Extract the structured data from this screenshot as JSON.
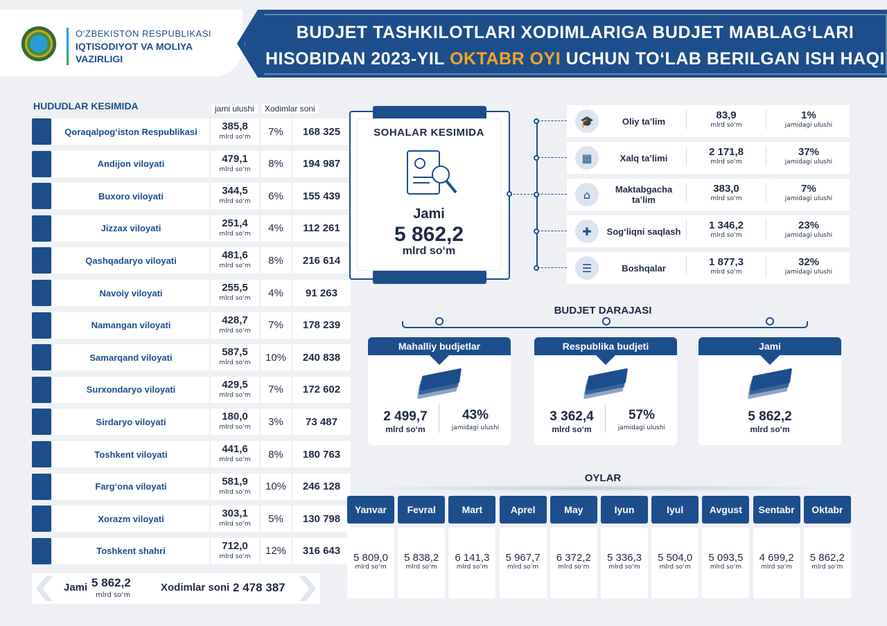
{
  "header": {
    "ministry_line1": "O‘ZBEKISTON RESPUBLIKASI",
    "ministry_line2": "IQTISODIYOT VA MOLIYA",
    "ministry_line3": "VAZIRLIGI",
    "title_line1": "BUDJET TASHKILOTLARI XODIMLARIGA BUDJET MABLAG‘LARI",
    "title_line2_a": "HISOBIDAN 2023-YIL",
    "title_line2_hl": "OKTABR OYI",
    "title_line2_b": "UCHUN TO‘LAB BERILGAN ISH HAQI",
    "accent_color": "#f5a623",
    "primary_color": "#1c4e8c"
  },
  "regions": {
    "heading": "HUDUDLAR KESIMIDA",
    "col_share": "jami ulushi",
    "col_staff": "Xodimlar soni",
    "unit": "mlrd so‘m",
    "rows": [
      {
        "name": "Qoraqalpog‘iston Respublikasi",
        "value": "385,8",
        "share": "7%",
        "staff": "168 325"
      },
      {
        "name": "Andijon viloyati",
        "value": "479,1",
        "share": "8%",
        "staff": "194 987"
      },
      {
        "name": "Buxoro viloyati",
        "value": "344,5",
        "share": "6%",
        "staff": "155 439"
      },
      {
        "name": "Jizzax viloyati",
        "value": "251,4",
        "share": "4%",
        "staff": "112 261"
      },
      {
        "name": "Qashqadaryo viloyati",
        "value": "481,6",
        "share": "8%",
        "staff": "216 614"
      },
      {
        "name": "Navoiy viloyati",
        "value": "255,5",
        "share": "4%",
        "staff": "91 263"
      },
      {
        "name": "Namangan viloyati",
        "value": "428,7",
        "share": "7%",
        "staff": "178 239"
      },
      {
        "name": "Samarqand viloyati",
        "value": "587,5",
        "share": "10%",
        "staff": "240 838"
      },
      {
        "name": "Surxondaryo viloyati",
        "value": "429,5",
        "share": "7%",
        "staff": "172 602"
      },
      {
        "name": "Sirdaryo viloyati",
        "value": "180,0",
        "share": "3%",
        "staff": "73 487"
      },
      {
        "name": "Toshkent viloyati",
        "value": "441,6",
        "share": "8%",
        "staff": "180 763"
      },
      {
        "name": "Farg‘ona viloyati",
        "value": "581,9",
        "share": "10%",
        "staff": "246 128"
      },
      {
        "name": "Xorazm viloyati",
        "value": "303,1",
        "share": "5%",
        "staff": "130 798"
      },
      {
        "name": "Toshkent shahri",
        "value": "712,0",
        "share": "12%",
        "staff": "316 643"
      }
    ],
    "total_label": "Jami",
    "total_value": "5 862,2",
    "total_unit": "mlrd so‘m",
    "staff_label": "Xodimlar soni",
    "staff_total": "2 478 387"
  },
  "sectors": {
    "heading": "SOHALAR KESIMIDA",
    "jami": "Jami",
    "total": "5 862,2",
    "unit": "mlrd so‘m",
    "share_unit": "jamidagi ulushi",
    "rows": [
      {
        "name": "Oliy ta’lim",
        "value": "83,9",
        "share": "1%",
        "icon": "graduate-icon"
      },
      {
        "name": "Xalq ta’limi",
        "value": "2 171,8",
        "share": "37%",
        "icon": "classroom-icon"
      },
      {
        "name": "Maktabgacha ta’lim",
        "value": "383,0",
        "share": "7%",
        "icon": "kindergarten-icon"
      },
      {
        "name": "Sog‘liqni saqlash",
        "value": "1 346,2",
        "share": "23%",
        "icon": "doctor-icon"
      },
      {
        "name": "Boshqalar",
        "value": "1 877,3",
        "share": "32%",
        "icon": "checklist-icon"
      }
    ]
  },
  "budget_level": {
    "heading": "BUDJET DARAJASI",
    "unit": "mlrd so‘m",
    "share_unit": "jamidagi ulushi",
    "cards": [
      {
        "name": "Mahalliy budjetlar",
        "value": "2 499,7",
        "share": "43%"
      },
      {
        "name": "Respublika budjeti",
        "value": "3 362,4",
        "share": "57%"
      },
      {
        "name": "Jami",
        "value": "5 862,2"
      }
    ]
  },
  "months": {
    "heading": "OYLAR",
    "unit": "mlrd so‘m",
    "items": [
      {
        "name": "Yanvar",
        "value": "5 809,0"
      },
      {
        "name": "Fevral",
        "value": "5 838,2"
      },
      {
        "name": "Mart",
        "value": "6 141,3"
      },
      {
        "name": "Aprel",
        "value": "5 967,7"
      },
      {
        "name": "May",
        "value": "6 372,2"
      },
      {
        "name": "Iyun",
        "value": "5 336,3"
      },
      {
        "name": "Iyul",
        "value": "5 504,0"
      },
      {
        "name": "Avgust",
        "value": "5 093,5"
      },
      {
        "name": "Sentabr",
        "value": "4 699,2"
      },
      {
        "name": "Oktabr",
        "value": "5 862,2"
      }
    ]
  }
}
